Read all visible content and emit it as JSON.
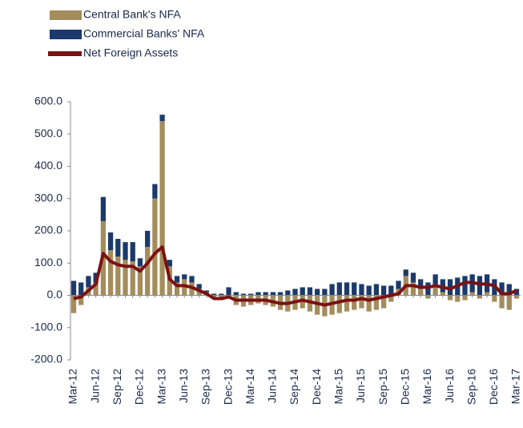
{
  "chart_data": {
    "type": "bar",
    "stacked": true,
    "categories": [
      "Mar-12",
      null,
      null,
      "Jun-12",
      null,
      null,
      "Sep-12",
      null,
      null,
      "Dec-12",
      null,
      null,
      "Mar-13",
      null,
      null,
      "Jun-13",
      null,
      null,
      "Sep-13",
      null,
      null,
      "Dec-13",
      null,
      null,
      "Mar-14",
      null,
      null,
      "Jun-14",
      null,
      null,
      "Sep-14",
      null,
      null,
      "Dec-14",
      null,
      null,
      "Mar-15",
      null,
      null,
      "Jun-15",
      null,
      null,
      "Sep-15",
      null,
      null,
      "Dec-15",
      null,
      null,
      "Mar-16",
      null,
      null,
      "Jun-16",
      null,
      null,
      "Sep-16",
      null,
      null,
      "Dec-16",
      null,
      null,
      "Mar-17"
    ],
    "series": [
      {
        "name": "Central Bank's NFA",
        "type": "bar",
        "color": "#a48d5c",
        "values": [
          -55,
          -30,
          25,
          40,
          230,
          140,
          120,
          110,
          105,
          90,
          150,
          300,
          540,
          90,
          40,
          50,
          40,
          20,
          10,
          -10,
          -15,
          -5,
          -30,
          -35,
          -30,
          -25,
          -30,
          -35,
          -45,
          -50,
          -45,
          -40,
          -50,
          -60,
          -65,
          -60,
          -55,
          -50,
          -45,
          -40,
          -50,
          -45,
          -40,
          -20,
          20,
          60,
          40,
          20,
          -10,
          30,
          10,
          -15,
          -20,
          -15,
          10,
          -10,
          10,
          -20,
          -40,
          -45,
          -10
        ]
      },
      {
        "name": "Commercial Banks' NFA",
        "type": "bar",
        "color": "#1b3a6b",
        "values": [
          45,
          40,
          35,
          30,
          75,
          55,
          55,
          55,
          60,
          25,
          50,
          45,
          20,
          20,
          20,
          15,
          20,
          15,
          5,
          5,
          5,
          25,
          10,
          5,
          5,
          10,
          10,
          10,
          10,
          15,
          20,
          25,
          25,
          20,
          20,
          35,
          40,
          40,
          40,
          35,
          30,
          35,
          30,
          30,
          25,
          20,
          30,
          30,
          40,
          35,
          40,
          50,
          55,
          60,
          55,
          60,
          55,
          50,
          40,
          35,
          20
        ]
      },
      {
        "name": "Net Foreign Assets",
        "type": "line",
        "color": "#7b1113",
        "values": [
          -10,
          -5,
          15,
          35,
          130,
          105,
          95,
          90,
          90,
          75,
          100,
          130,
          150,
          50,
          30,
          30,
          25,
          15,
          5,
          -10,
          -10,
          -5,
          -15,
          -15,
          -15,
          -15,
          -15,
          -20,
          -25,
          -25,
          -20,
          -15,
          -20,
          -25,
          -30,
          -25,
          -20,
          -15,
          -15,
          -10,
          -15,
          -10,
          -5,
          0,
          5,
          30,
          30,
          25,
          25,
          30,
          25,
          20,
          30,
          40,
          40,
          35,
          35,
          30,
          5,
          5,
          15
        ]
      }
    ],
    "ylim": [
      -200,
      600
    ],
    "yticks": [
      {
        "value": -200,
        "label": "-200.0"
      },
      {
        "value": -100,
        "label": "-100.0"
      },
      {
        "value": 0,
        "label": "0.0"
      },
      {
        "value": 100,
        "label": "100.0"
      },
      {
        "value": 200,
        "label": "200.0"
      },
      {
        "value": 300,
        "label": "300.0"
      },
      {
        "value": 400,
        "label": "400.0"
      },
      {
        "value": 500,
        "label": "500.0"
      },
      {
        "value": 600,
        "label": "600.0"
      }
    ],
    "legend": "top-left"
  }
}
